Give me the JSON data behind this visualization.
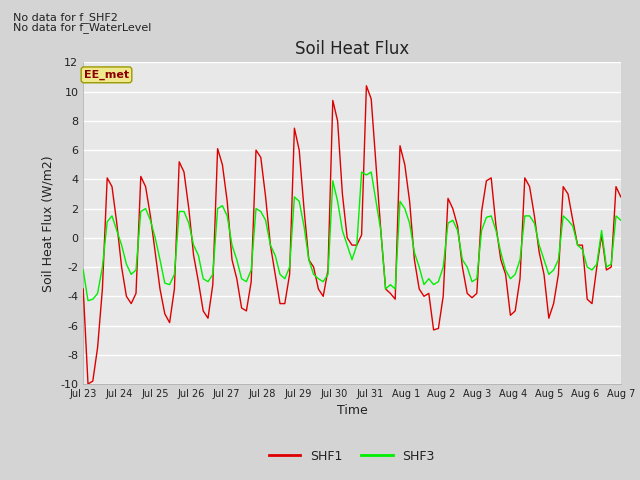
{
  "title": "Soil Heat Flux",
  "ylabel": "Soil Heat Flux (W/m2)",
  "xlabel": "Time",
  "ylim": [
    -10,
    12
  ],
  "x_tick_labels": [
    "Jul 23",
    "Jul 24",
    "Jul 25",
    "Jul 26",
    "Jul 27",
    "Jul 28",
    "Jul 29",
    "Jul 30",
    "Jul 31",
    "Aug 1",
    "Aug 2",
    "Aug 3",
    "Aug 4",
    "Aug 5",
    "Aug 6",
    "Aug 7"
  ],
  "note_line1": "No data for f_SHF2",
  "note_line2": "No data for f_WaterLevel",
  "ee_met_label": "EE_met",
  "fig_facecolor": "#d4d4d4",
  "plot_facecolor": "#e8e8e8",
  "grid_color": "#ffffff",
  "shf1_color": "#dd0000",
  "shf3_color": "#00ee00",
  "legend_shf1": "SHF1",
  "legend_shf3": "SHF3",
  "shf1_values": [
    -3.5,
    -10.0,
    -9.8,
    -7.5,
    -3.5,
    4.1,
    3.5,
    1.0,
    -2.0,
    -4.0,
    -4.5,
    -3.8,
    4.2,
    3.5,
    1.5,
    -1.0,
    -3.5,
    -5.2,
    -5.8,
    -3.5,
    5.2,
    4.5,
    2.0,
    -1.2,
    -3.0,
    -5.0,
    -5.5,
    -3.2,
    6.1,
    5.0,
    2.5,
    -1.5,
    -2.8,
    -4.8,
    -5.0,
    -3.0,
    6.0,
    5.5,
    2.8,
    -0.5,
    -2.5,
    -4.5,
    -4.5,
    -2.5,
    7.5,
    6.0,
    2.0,
    -1.5,
    -2.0,
    -3.5,
    -4.0,
    -2.2,
    9.4,
    8.0,
    3.0,
    0.0,
    -0.5,
    -0.5,
    0.2,
    10.4,
    9.5,
    5.0,
    0.5,
    -3.5,
    -3.8,
    -4.2,
    6.3,
    5.0,
    2.5,
    -1.5,
    -3.5,
    -4.0,
    -3.8,
    -6.3,
    -6.2,
    -4.0,
    2.7,
    2.0,
    0.8,
    -2.0,
    -3.8,
    -4.1,
    -3.8,
    1.8,
    3.9,
    4.1,
    0.8,
    -1.5,
    -2.5,
    -5.3,
    -5.0,
    -2.8,
    4.1,
    3.5,
    1.5,
    -1.0,
    -2.5,
    -5.5,
    -4.5,
    -2.5,
    3.5,
    3.0,
    1.2,
    -0.5,
    -0.5,
    -4.2,
    -4.5,
    -2.0,
    0.2,
    -2.2,
    -2.0,
    3.5,
    2.8
  ],
  "shf3_values": [
    -2.2,
    -4.3,
    -4.2,
    -3.8,
    -2.0,
    1.1,
    1.5,
    0.5,
    -0.5,
    -1.8,
    -2.5,
    -2.2,
    1.8,
    2.0,
    1.2,
    0.0,
    -1.5,
    -3.1,
    -3.2,
    -2.5,
    1.8,
    1.8,
    1.0,
    -0.5,
    -1.2,
    -2.8,
    -3.0,
    -2.5,
    2.0,
    2.2,
    1.5,
    -0.5,
    -1.5,
    -2.8,
    -3.0,
    -2.2,
    2.0,
    1.8,
    1.2,
    -0.5,
    -1.2,
    -2.5,
    -2.8,
    -2.0,
    2.8,
    2.5,
    0.8,
    -1.5,
    -2.5,
    -2.8,
    -3.0,
    -2.5,
    3.9,
    2.5,
    0.5,
    -0.5,
    -1.5,
    -0.5,
    4.5,
    4.3,
    4.5,
    2.5,
    0.5,
    -3.5,
    -3.2,
    -3.5,
    2.5,
    2.0,
    1.0,
    -1.0,
    -2.0,
    -3.2,
    -2.8,
    -3.2,
    -3.0,
    -2.0,
    1.0,
    1.2,
    0.5,
    -1.5,
    -2.0,
    -3.0,
    -2.8,
    0.5,
    1.4,
    1.5,
    0.5,
    -1.0,
    -2.2,
    -2.8,
    -2.5,
    -1.5,
    1.5,
    1.5,
    1.0,
    -0.5,
    -1.5,
    -2.5,
    -2.2,
    -1.5,
    1.5,
    1.2,
    0.8,
    -0.5,
    -0.8,
    -2.0,
    -2.2,
    -1.8,
    0.5,
    -2.0,
    -1.8,
    1.5,
    1.2
  ]
}
